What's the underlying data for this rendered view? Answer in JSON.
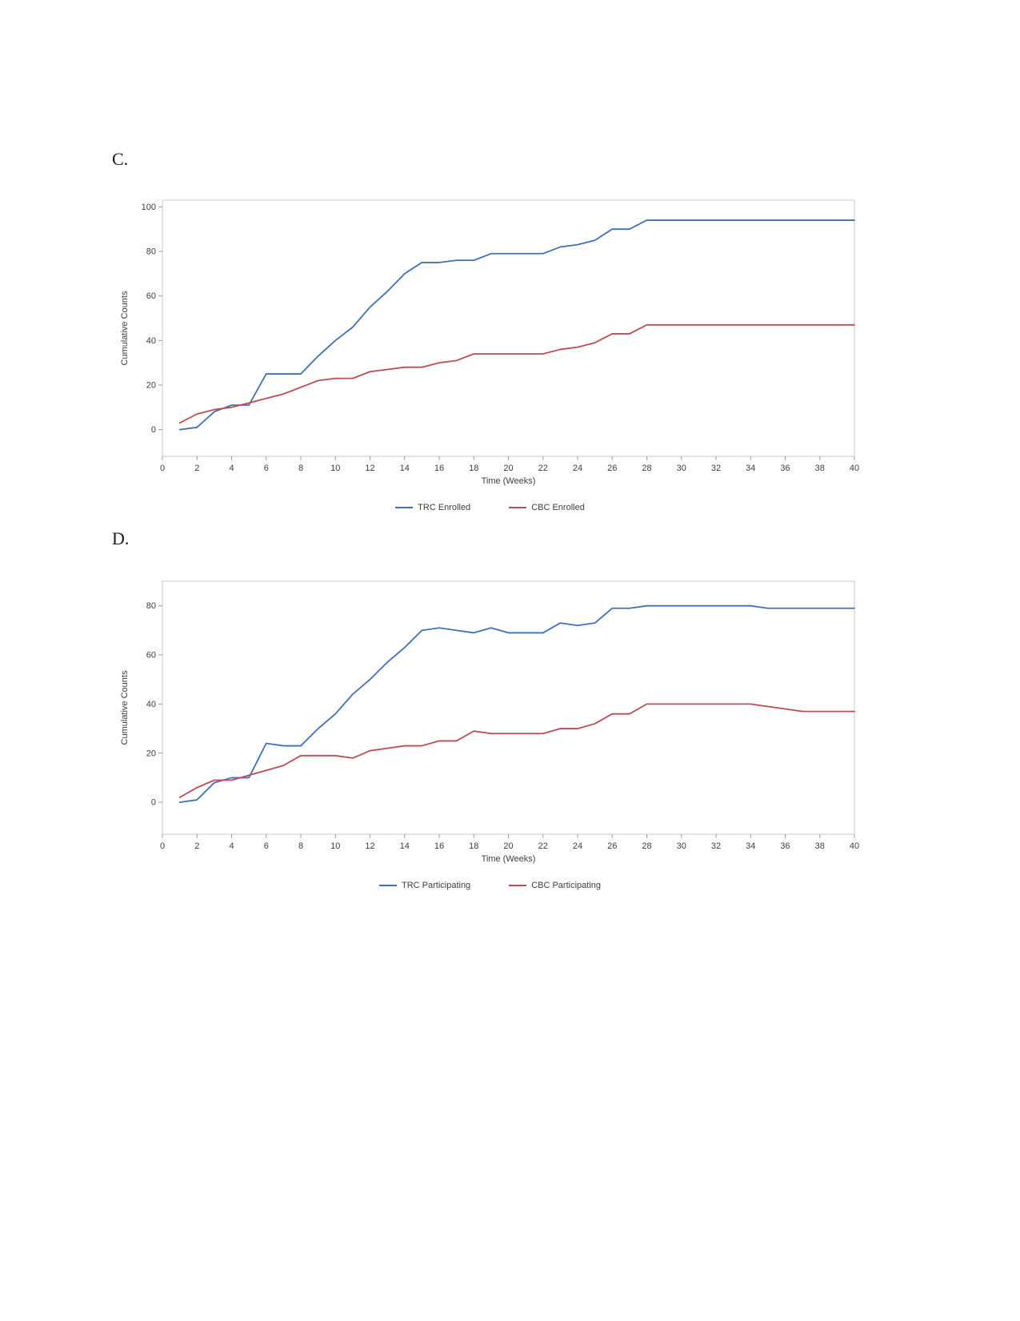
{
  "page": {
    "background": "#ffffff"
  },
  "sections": [
    {
      "label": "C."
    },
    {
      "label": "D."
    }
  ],
  "colors": {
    "frame": "#c9c9c9",
    "tick": "#9c9c9c",
    "text": "#3d3d3d",
    "trc_blue": "#4070b8",
    "cbc_red": "#bc4b55"
  },
  "chart_data": [
    {
      "type": "line",
      "title": "",
      "xlabel": "Time (Weeks)",
      "ylabel": "Cumulative Counts",
      "xlim": [
        0,
        40
      ],
      "ylim": [
        -12,
        103
      ],
      "xticks": [
        0,
        2,
        4,
        6,
        8,
        10,
        12,
        14,
        16,
        18,
        20,
        22,
        24,
        26,
        28,
        30,
        32,
        34,
        36,
        38,
        40
      ],
      "yticks": [
        0,
        20,
        40,
        60,
        80,
        100
      ],
      "grid": false,
      "legend_position": "bottom",
      "x": [
        1,
        2,
        3,
        4,
        5,
        6,
        7,
        8,
        9,
        10,
        11,
        12,
        13,
        14,
        15,
        16,
        17,
        18,
        19,
        20,
        21,
        22,
        23,
        24,
        25,
        26,
        27,
        28,
        29,
        30,
        31,
        32,
        33,
        34,
        35,
        36,
        37,
        38,
        39,
        40
      ],
      "series": [
        {
          "name": "TRC Enrolled",
          "color": "#4070b8",
          "values": [
            0,
            1,
            8,
            11,
            11,
            25,
            25,
            25,
            33,
            40,
            46,
            55,
            62,
            70,
            75,
            75,
            76,
            76,
            79,
            79,
            79,
            79,
            82,
            83,
            85,
            90,
            90,
            94,
            94,
            94,
            94,
            94,
            94,
            94,
            94,
            94,
            94,
            94,
            94,
            94
          ]
        },
        {
          "name": "CBC Enrolled",
          "color": "#bc4b55",
          "values": [
            3,
            7,
            9,
            10,
            12,
            14,
            16,
            19,
            22,
            23,
            23,
            26,
            27,
            28,
            28,
            30,
            31,
            34,
            34,
            34,
            34,
            34,
            36,
            37,
            39,
            43,
            43,
            47,
            47,
            47,
            47,
            47,
            47,
            47,
            47,
            47,
            47,
            47,
            47,
            47
          ]
        }
      ]
    },
    {
      "type": "line",
      "title": "",
      "xlabel": "Time (Weeks)",
      "ylabel": "Cumulative Counts",
      "xlim": [
        0,
        40
      ],
      "ylim": [
        -13,
        90
      ],
      "xticks": [
        0,
        2,
        4,
        6,
        8,
        10,
        12,
        14,
        16,
        18,
        20,
        22,
        24,
        26,
        28,
        30,
        32,
        34,
        36,
        38,
        40
      ],
      "yticks": [
        0,
        20,
        40,
        60,
        80
      ],
      "grid": false,
      "legend_position": "bottom",
      "x": [
        1,
        2,
        3,
        4,
        5,
        6,
        7,
        8,
        9,
        10,
        11,
        12,
        13,
        14,
        15,
        16,
        17,
        18,
        19,
        20,
        21,
        22,
        23,
        24,
        25,
        26,
        27,
        28,
        29,
        30,
        31,
        32,
        33,
        34,
        35,
        36,
        37,
        38,
        39,
        40
      ],
      "series": [
        {
          "name": "TRC Participating",
          "color": "#4070b8",
          "values": [
            0,
            1,
            8,
            10,
            10,
            24,
            23,
            23,
            30,
            36,
            44,
            50,
            57,
            63,
            70,
            71,
            70,
            69,
            71,
            69,
            69,
            69,
            73,
            72,
            73,
            79,
            79,
            80,
            80,
            80,
            80,
            80,
            80,
            80,
            79,
            79,
            79,
            79,
            79,
            79
          ]
        },
        {
          "name": "CBC Participating",
          "color": "#bc4b55",
          "values": [
            2,
            6,
            9,
            9,
            11,
            13,
            15,
            19,
            19,
            19,
            18,
            21,
            22,
            23,
            23,
            25,
            25,
            29,
            28,
            28,
            28,
            28,
            30,
            30,
            32,
            36,
            36,
            40,
            40,
            40,
            40,
            40,
            40,
            40,
            39,
            38,
            37,
            37,
            37,
            37
          ]
        }
      ]
    }
  ]
}
